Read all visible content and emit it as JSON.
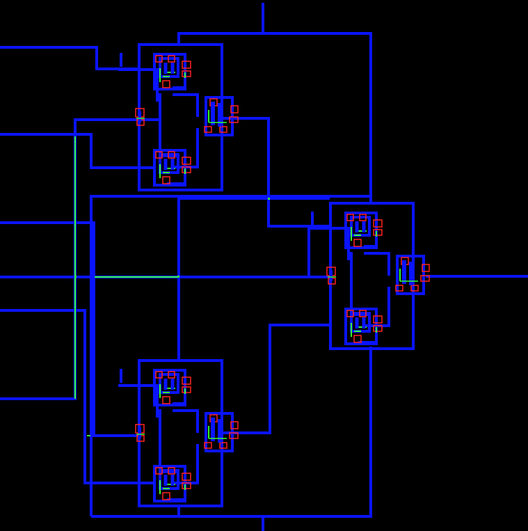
{
  "view": {
    "background": "#000000"
  },
  "layers": {
    "metal": {
      "color": "#0a14ff"
    },
    "poly": {
      "color": "#33ff33"
    },
    "contact": {
      "color": "#ff2222"
    },
    "via": {
      "color": "#ff4444"
    }
  },
  "cells": [
    {
      "id": "top-left"
    },
    {
      "id": "bottom-left"
    },
    {
      "id": "right"
    }
  ]
}
